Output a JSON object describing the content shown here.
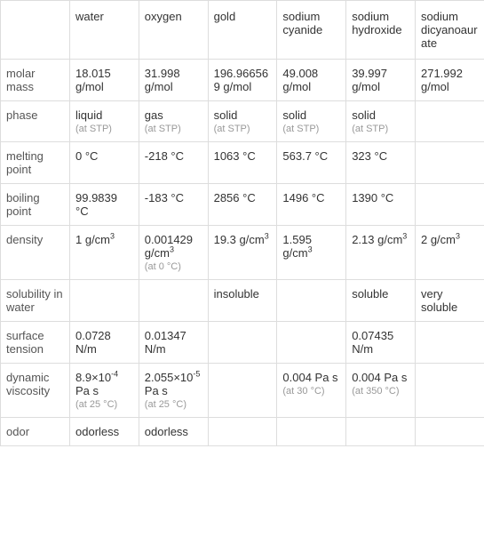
{
  "table": {
    "columns": [
      "water",
      "oxygen",
      "gold",
      "sodium cyanide",
      "sodium hydroxide",
      "sodium dicyanoaurate"
    ],
    "rows": [
      {
        "label": "molar mass",
        "cells": [
          {
            "main": "18.015 g/mol"
          },
          {
            "main": "31.998 g/mol"
          },
          {
            "main": "196.966569 g/mol"
          },
          {
            "main": "49.008 g/mol"
          },
          {
            "main": "39.997 g/mol"
          },
          {
            "main": "271.992 g/mol"
          }
        ]
      },
      {
        "label": "phase",
        "cells": [
          {
            "main": "liquid",
            "sub": "(at STP)"
          },
          {
            "main": "gas",
            "sub": "(at STP)"
          },
          {
            "main": "solid",
            "sub": "(at STP)"
          },
          {
            "main": "solid",
            "sub": "(at STP)"
          },
          {
            "main": "solid",
            "sub": "(at STP)"
          },
          {
            "main": ""
          }
        ]
      },
      {
        "label": "melting point",
        "cells": [
          {
            "main": "0 °C"
          },
          {
            "main": "-218 °C"
          },
          {
            "main": "1063 °C"
          },
          {
            "main": "563.7 °C"
          },
          {
            "main": "323 °C"
          },
          {
            "main": ""
          }
        ]
      },
      {
        "label": "boiling point",
        "cells": [
          {
            "main": "99.9839 °C"
          },
          {
            "main": "-183 °C"
          },
          {
            "main": "2856 °C"
          },
          {
            "main": "1496 °C"
          },
          {
            "main": "1390 °C"
          },
          {
            "main": ""
          }
        ]
      },
      {
        "label": "density",
        "cells": [
          {
            "main_html": "1 g/cm<sup>3</sup>"
          },
          {
            "main_html": "0.001429 g/cm<sup>3</sup>",
            "sub": "(at 0 °C)"
          },
          {
            "main_html": "19.3 g/cm<sup>3</sup>"
          },
          {
            "main_html": "1.595 g/cm<sup>3</sup>"
          },
          {
            "main_html": "2.13 g/cm<sup>3</sup>"
          },
          {
            "main_html": "2 g/cm<sup>3</sup>"
          }
        ]
      },
      {
        "label": "solubility in water",
        "cells": [
          {
            "main": ""
          },
          {
            "main": ""
          },
          {
            "main": "insoluble"
          },
          {
            "main": ""
          },
          {
            "main": "soluble"
          },
          {
            "main": "very soluble"
          }
        ]
      },
      {
        "label": "surface tension",
        "cells": [
          {
            "main": "0.0728 N/m"
          },
          {
            "main": "0.01347 N/m"
          },
          {
            "main": ""
          },
          {
            "main": ""
          },
          {
            "main": "0.07435 N/m"
          },
          {
            "main": ""
          }
        ]
      },
      {
        "label": "dynamic viscosity",
        "cells": [
          {
            "main_html": "8.9×10<sup>-4</sup> Pa s",
            "sub": "(at 25 °C)"
          },
          {
            "main_html": "2.055×10<sup>-5</sup> Pa s",
            "sub": "(at 25 °C)"
          },
          {
            "main": ""
          },
          {
            "main": "0.004 Pa s",
            "sub": "(at 30 °C)"
          },
          {
            "main": "0.004 Pa s",
            "sub": "(at 350 °C)"
          },
          {
            "main": ""
          }
        ]
      },
      {
        "label": "odor",
        "cells": [
          {
            "main": "odorless"
          },
          {
            "main": "odorless"
          },
          {
            "main": ""
          },
          {
            "main": ""
          },
          {
            "main": ""
          },
          {
            "main": ""
          }
        ]
      }
    ],
    "colors": {
      "border": "#dddddd",
      "text_main": "#333333",
      "text_label": "#555555",
      "text_sub": "#999999",
      "background": "#ffffff"
    },
    "font_size_main": 13,
    "font_size_sub": 11
  }
}
